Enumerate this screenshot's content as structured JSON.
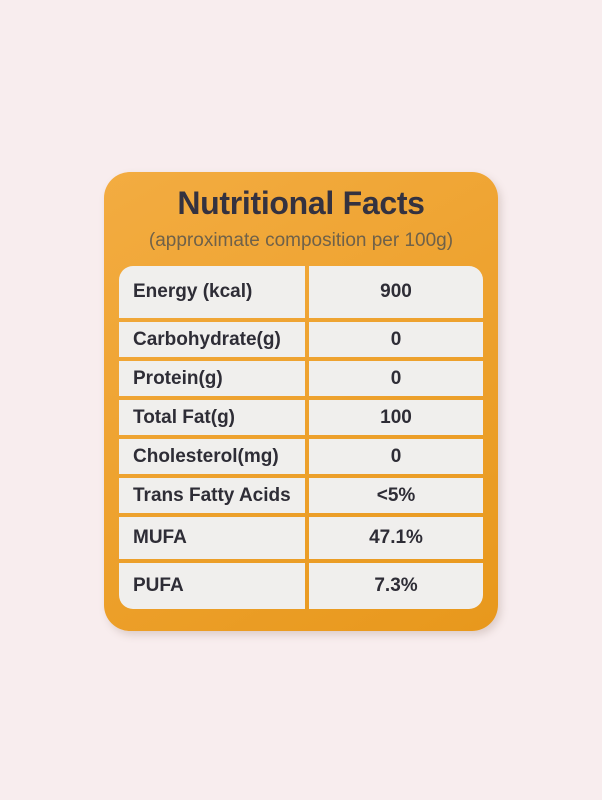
{
  "colors": {
    "page_bg": "#F8EDEE",
    "card_orange_top": "#F3AC41",
    "card_orange_bottom": "#E8981C",
    "title_text": "#343240",
    "subtitle_text": "#6F6149",
    "cell_bg": "#F0EFED",
    "cell_text": "#2E2D36"
  },
  "label": {
    "title": "Nutritional Facts",
    "subtitle": "(approximate composition per 100g)",
    "rows": [
      {
        "name": "Energy (kcal)",
        "value": "900"
      },
      {
        "name": "Carbohydrate(g)",
        "value": "0"
      },
      {
        "name": "Protein(g)",
        "value": "0"
      },
      {
        "name": "Total Fat(g)",
        "value": "100"
      },
      {
        "name": "Cholesterol(mg)",
        "value": "0"
      },
      {
        "name": "Trans Fatty Acids",
        "value": "<5%"
      },
      {
        "name": "MUFA",
        "value": "47.1%"
      },
      {
        "name": "PUFA",
        "value": "7.3%"
      }
    ]
  }
}
